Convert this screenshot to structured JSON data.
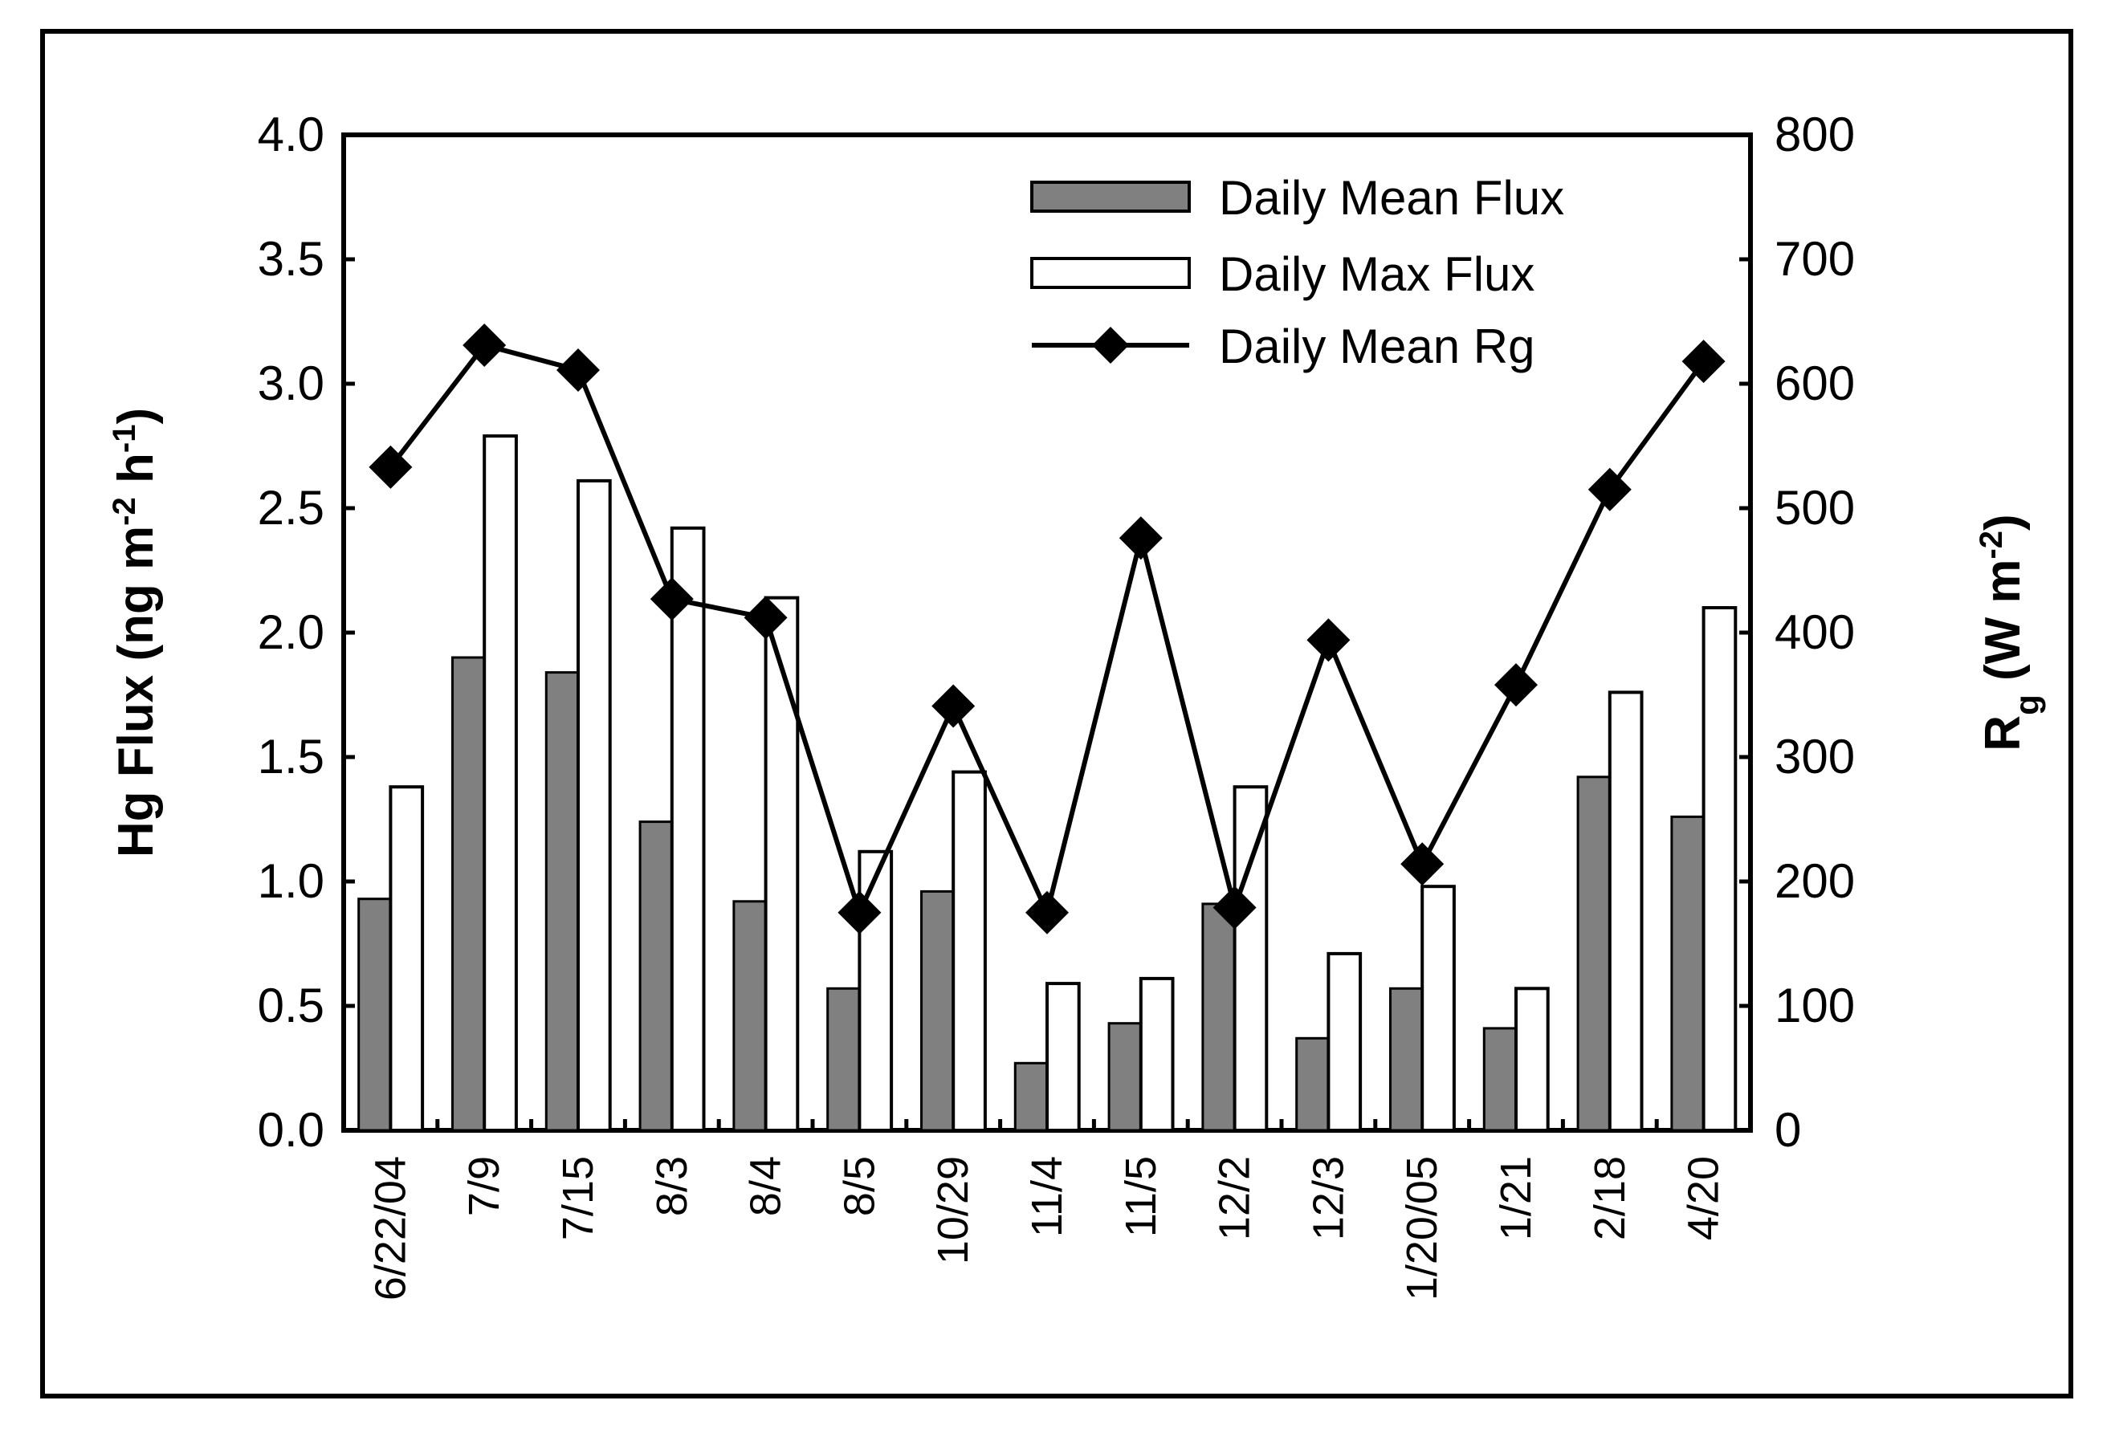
{
  "chart_data": {
    "type": "bar",
    "categories": [
      "6/22/04",
      "7/9",
      "7/15",
      "8/3",
      "8/4",
      "8/5",
      "10/29",
      "11/4",
      "11/5",
      "12/2",
      "12/3",
      "1/20/05",
      "1/21",
      "2/18",
      "4/20"
    ],
    "series": [
      {
        "name": "Daily Mean Flux",
        "type": "bar",
        "axis": "left",
        "color": "#808080",
        "values": [
          0.93,
          1.9,
          1.84,
          1.24,
          0.92,
          0.57,
          0.96,
          0.27,
          0.43,
          0.91,
          0.37,
          0.57,
          0.41,
          1.42,
          1.26
        ]
      },
      {
        "name": "Daily Max Flux",
        "type": "bar",
        "axis": "left",
        "color": "#ffffff",
        "values": [
          1.38,
          2.79,
          2.61,
          2.42,
          2.14,
          1.12,
          1.44,
          0.59,
          0.61,
          1.38,
          0.71,
          0.98,
          0.57,
          1.76,
          2.1
        ]
      },
      {
        "name": "Daily Mean Rg",
        "type": "line",
        "axis": "right",
        "color": "#000000",
        "marker": "diamond",
        "values": [
          533,
          631,
          611,
          427,
          412,
          175,
          341,
          175,
          476,
          179,
          394,
          214,
          358,
          515,
          618
        ]
      }
    ],
    "y_left": {
      "label_parts": [
        "Hg Flux (ng m",
        "-2",
        " h",
        "-1",
        ")"
      ],
      "range": [
        0,
        4.0
      ],
      "ticks": [
        "0.0",
        "0.5",
        "1.0",
        "1.5",
        "2.0",
        "2.5",
        "3.0",
        "3.5",
        "4.0"
      ]
    },
    "y_right": {
      "label_parts": [
        "R",
        "g",
        " (W m",
        "-2",
        ")"
      ],
      "range": [
        0,
        800
      ],
      "ticks": [
        "0",
        "100",
        "200",
        "300",
        "400",
        "500",
        "600",
        "700",
        "800"
      ]
    },
    "legend_position": "top-right",
    "grid": false
  }
}
